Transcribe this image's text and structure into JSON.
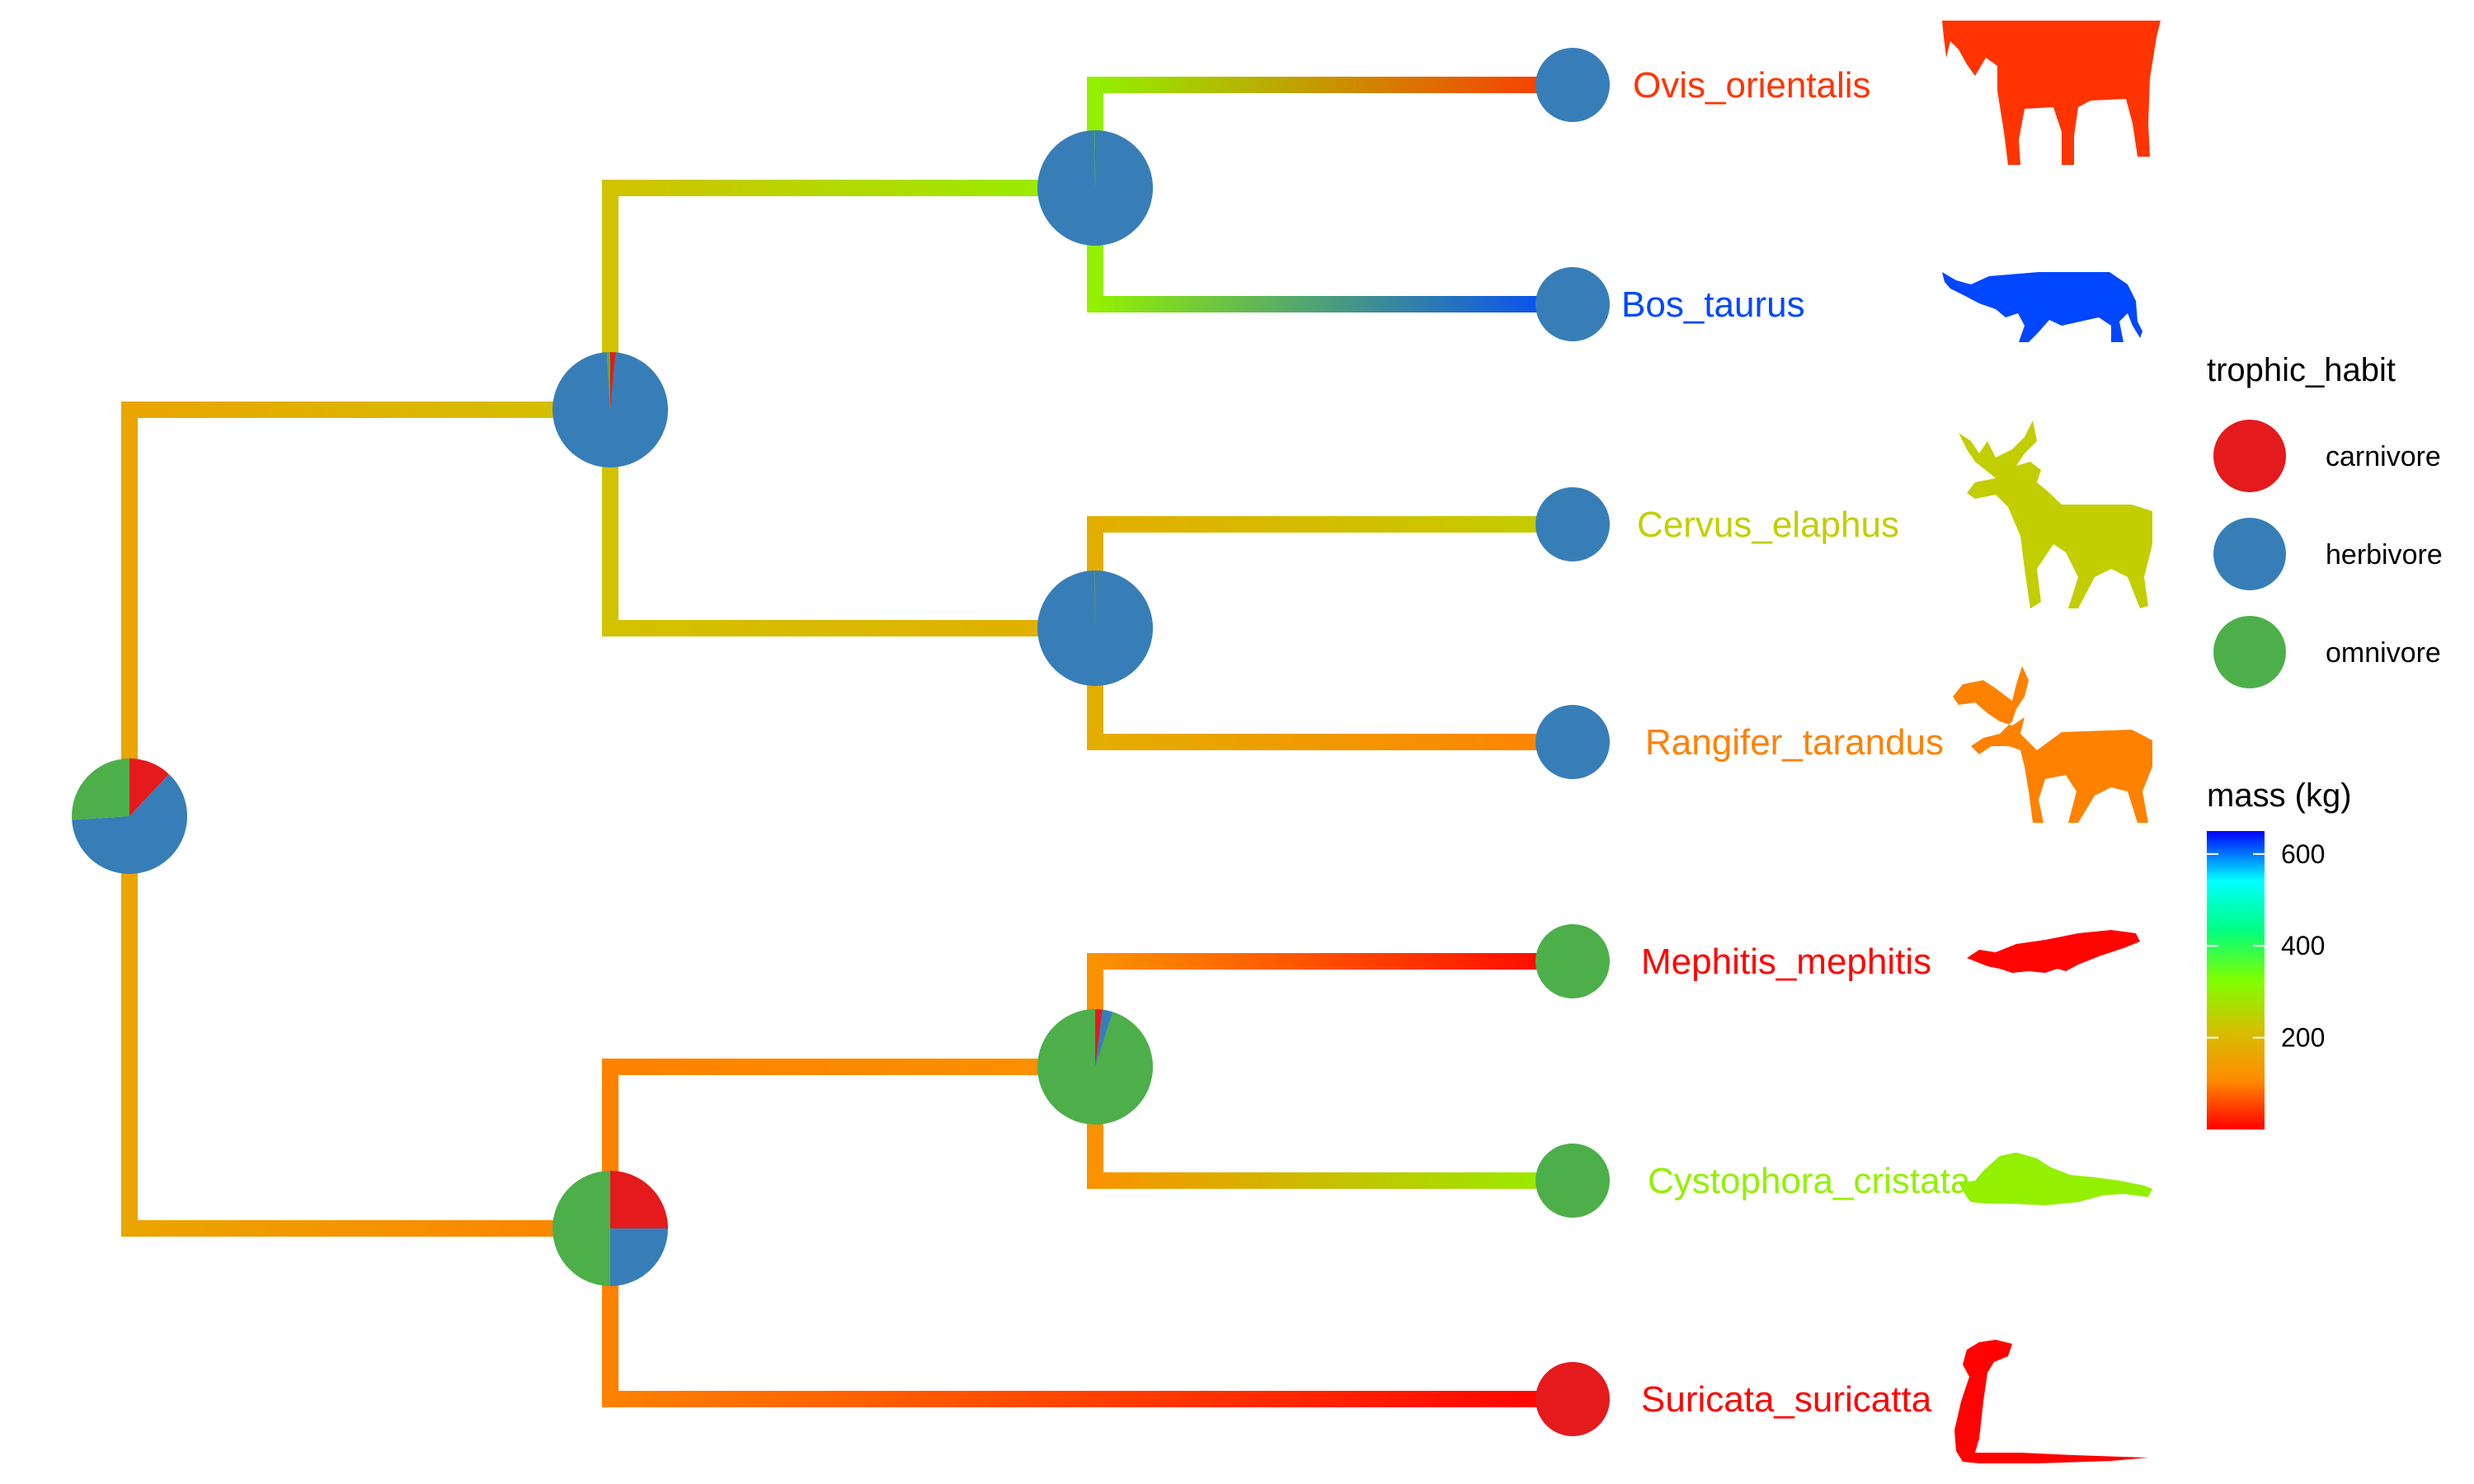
{
  "chart_data": {
    "type": "phylogenetic-tree",
    "tips": [
      {
        "label": "Ovis_orientalis",
        "mass_kg": 40,
        "trophic_habit": "herbivore",
        "silhouette": "sheep-silhouette"
      },
      {
        "label": "Bos_taurus",
        "mass_kg": 620,
        "trophic_habit": "herbivore",
        "silhouette": "cattle-silhouette"
      },
      {
        "label": "Cervus_elaphus",
        "mass_kg": 240,
        "trophic_habit": "herbivore",
        "silhouette": "red-deer-silhouette"
      },
      {
        "label": "Rangifer_tarandus",
        "mass_kg": 100,
        "trophic_habit": "herbivore",
        "silhouette": "reindeer-silhouette"
      },
      {
        "label": "Mephitis_mephitis",
        "mass_kg": 3,
        "trophic_habit": "omnivore",
        "silhouette": "skunk-silhouette"
      },
      {
        "label": "Cystophora_cristata",
        "mass_kg": 300,
        "trophic_habit": "omnivore",
        "silhouette": "seal-silhouette"
      },
      {
        "label": "Suricata_suricatta",
        "mass_kg": 1,
        "trophic_habit": "carnivore",
        "silhouette": "meerkat-silhouette"
      }
    ],
    "internal_nodes": [
      {
        "id": "root",
        "mass_kg": 160,
        "pie": {
          "carnivore": 0.12,
          "herbivore": 0.62,
          "omnivore": 0.26
        }
      },
      {
        "id": "ruminants",
        "mass_kg": 220,
        "pie": {
          "carnivore": 0.015,
          "herbivore": 0.975,
          "omnivore": 0.01
        }
      },
      {
        "id": "bovids",
        "mass_kg": 300,
        "pie": {
          "carnivore": 0.002,
          "herbivore": 0.996,
          "omnivore": 0.002
        }
      },
      {
        "id": "cervids",
        "mass_kg": 180,
        "pie": {
          "carnivore": 0.001,
          "herbivore": 0.998,
          "omnivore": 0.001
        }
      },
      {
        "id": "carnivorans",
        "mass_kg": 100,
        "pie": {
          "carnivore": 0.25,
          "herbivore": 0.25,
          "omnivore": 0.5
        }
      },
      {
        "id": "skunk-seal",
        "mass_kg": 120,
        "pie": {
          "carnivore": 0.02,
          "herbivore": 0.03,
          "omnivore": 0.95
        }
      }
    ],
    "legend_trophic": {
      "title": "trophic_habit",
      "items": [
        {
          "label": "carnivore",
          "color": "#e41a1c"
        },
        {
          "label": "herbivore",
          "color": "#377eb8"
        },
        {
          "label": "omnivore",
          "color": "#4daf4a"
        }
      ]
    },
    "legend_mass": {
      "title": "mass (kg)",
      "ticks": [
        200,
        400,
        600
      ],
      "range": [
        0,
        650
      ],
      "color_stops": [
        "#ff0000",
        "#ff8c00",
        "#d4c000",
        "#7fff00",
        "#00ff80",
        "#00ffff",
        "#0000ff"
      ]
    }
  }
}
